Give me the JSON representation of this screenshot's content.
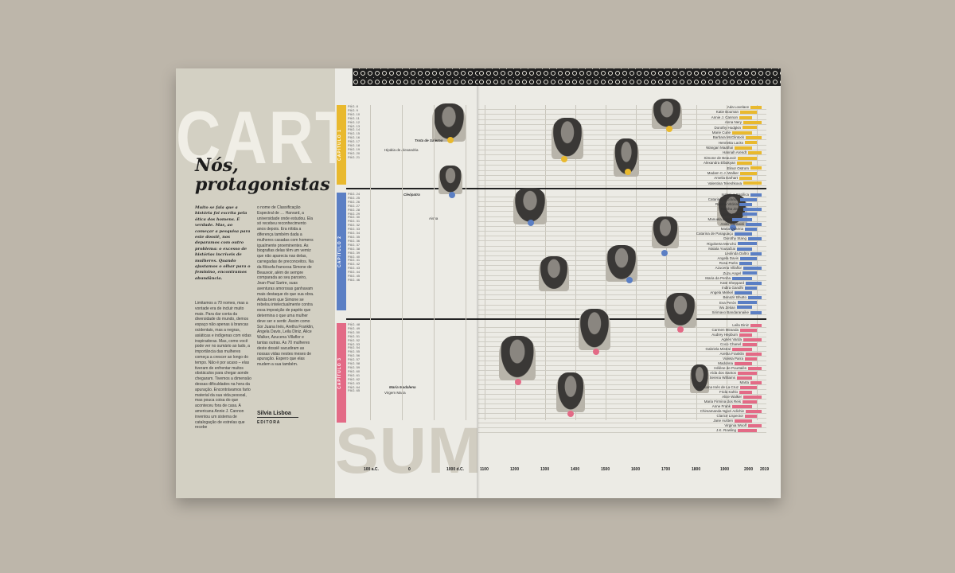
{
  "left_page": {
    "headline_bg": "CARTA",
    "title": "Nós, protagonistas",
    "intro": "Muito se fala que a história foi escrita pela ótica dos homens. É verdade. Mas, ao começar a pesquisa para este dossiê, nos deparamos com outro problema: o excesso de histórias incríveis de mulheres. Quando ajustamos o olhar para o feminino, encontramos abundância.",
    "col1": "Limitamos a 70 nomes, mas a vontade era de incluir muito mais. Para dar conta da diversidade do mundo, demos espaço não apenas à brancas ocidentais, mas a negras, asiáticas e indígenas com vidas inspiradoras. Mas, como você pode ver no sumário ao lado, a importância das mulheres começa a crescer ao longo do tempo. Não é por acaso – elas tiveram de enfrentar muitos obstáculos para chegar aonde chegaram. Tivemos a dimensão dessas dificuldades na hora da apuração. Encontrávamos farto material da sua vida pessoal, mas pouca coisa do que aconteceu fora de casa. A americana Annie J. Cannon inventou um sistema de catalogação de estrelas que recebe",
    "col2": "o nome de Classificação Espectral de … Harvard, a universidade onde estudou. Ela só recebeu reconhecimento anos depois. Era nítida a diferença também dada a mulheres casadas com homens igualmente proeminentes. As biografias delas têm um verniz que não aparecia nas delas, carregadas de preconceitos. Na da filósofa francesa Simone de Beauvoir, além de sempre comparada ao seu parceiro, Jean-Paul Sartre, suas aventuras amorosas ganhavam mais destaque do que sua obra. Ainda bem que Simone se rebelou intelectualmente contra essa imposição de papéis que determina o que uma mulher deve ser e sentir. Assim como Sor Juana Inés, Aretha Franklin, Angela Davis, Leila Diniz, Alice Walker, Azucena Villaflor e tantas outras. As 70 mulheres deste dossiê sacudiram as nossas vidas nestes meses de apuração. Espero que elas mudem a sua também.",
    "signature": "Silvia Lisboa",
    "role": "EDITORA",
    "headline_bottom": "SUMÁRIO"
  },
  "chapters": [
    {
      "label": "CAPÍTULO 1",
      "color": "#e9b92e"
    },
    {
      "label": "CAPÍTULO 2",
      "color": "#5b7fc4"
    },
    {
      "label": "CAPÍTULO 3",
      "color": "#e36a86"
    }
  ],
  "axis_years": [
    "100 a.C.",
    "0",
    "1000 d.C.",
    "1100",
    "1200",
    "1300",
    "1400",
    "1500",
    "1600",
    "1700",
    "1800",
    "1900",
    "2000",
    "2019"
  ],
  "pages_ch1": "PÁG. 8\nPÁG. 9\nPÁG. 10\nPÁG. 11\nPÁG. 12\nPÁG. 13\nPÁG. 14\nPÁG. 15\nPÁG. 16\nPÁG. 17\nPÁG. 18\nPÁG. 19\nPÁG. 20\nPÁG. 21",
  "pages_ch2": "PÁG. 24\nPÁG. 25\nPÁG. 26\nPÁG. 27\nPÁG. 28\nPÁG. 29\nPÁG. 30\nPÁG. 31\nPÁG. 32\nPÁG. 33\nPÁG. 34\nPÁG. 35\nPÁG. 36\nPÁG. 37\nPÁG. 38\nPÁG. 39\nPÁG. 40\nPÁG. 41\nPÁG. 42\nPÁG. 43\nPÁG. 44\nPÁG. 45\nPÁG. 46",
  "pages_ch3": "PÁG. 48\nPÁG. 49\nPÁG. 50\nPÁG. 51\nPÁG. 52\nPÁG. 53\nPÁG. 54\nPÁG. 55\nPÁG. 56\nPÁG. 57\nPÁG. 58\nPÁG. 59\nPÁG. 60\nPÁG. 61\nPÁG. 62\nPÁG. 63\nPÁG. 64\nPÁG. 65",
  "women_ch1": [
    "Ada Lovelace",
    "Katie Bouman",
    "Annie J. Cannon",
    "Anna Nery",
    "Dorothy Hodgkin",
    "Marie Curie",
    "Barbara McClintock",
    "Henrietta Lacks",
    "Wangari Maathai",
    "Hannah Arendt",
    "Simone de Beauvoir",
    "Alexandra Elbakyan",
    "Elinor Ostrom",
    "Madam C.J. Walker",
    "Amelia Earhart",
    "Valentina Tereshkova"
  ],
  "women_ch1_left": [
    "Trota de Salerno",
    "Hipátia de Alexandria"
  ],
  "women_ch2": [
    "Isabel, a Católica",
    "Catarina, a Grande",
    "Rainha Vitória",
    "Rainha Jinga",
    "Joana D'Arc",
    "Manuela Leon",
    "Anita Garibaldi",
    "Maria Quitéria",
    "Catarina de Paraguaçu",
    "Dorothy Stang",
    "Rigoberta Menchú",
    "Malala Yousafzai",
    "Leolinda Daltro",
    "Angela Davis",
    "Rosa Parks",
    "Azucena Villaflor",
    "Zuzu Angel",
    "Maria da Penha",
    "Kate Sheppard",
    "Indira Gandhi",
    "Angela Merkel",
    "Benazir Bhutto",
    "Eva Perón",
    "Wu Zetian",
    "Sirimavo Bandaranaike"
  ],
  "women_ch2_left": [
    "Cleópatra",
    "Aisha"
  ],
  "women_ch3": [
    "Leila Diniz",
    "Carmen Miranda",
    "Audrey Hepburn",
    "Agnès Varda",
    "Coco Chanel",
    "Gabriela Mistral",
    "Aretha Franklin",
    "Violeta Parra",
    "Madonna",
    "Hélène de Pourtalès",
    "Aída dos Santos",
    "Serena Williams",
    "Marta",
    "Sor Juana Inés de La Cruz",
    "Frida Kahlo",
    "Alice Walker",
    "Maria Firmina dos Reis",
    "Anne Frank",
    "Chimamanda Ngozi Adichie",
    "Clarice Lispector",
    "Jane Austen",
    "Virginia Woolf",
    "J.K. Rowling"
  ],
  "women_ch3_left": [
    "Maria Madalena",
    "Virgem Maria"
  ]
}
